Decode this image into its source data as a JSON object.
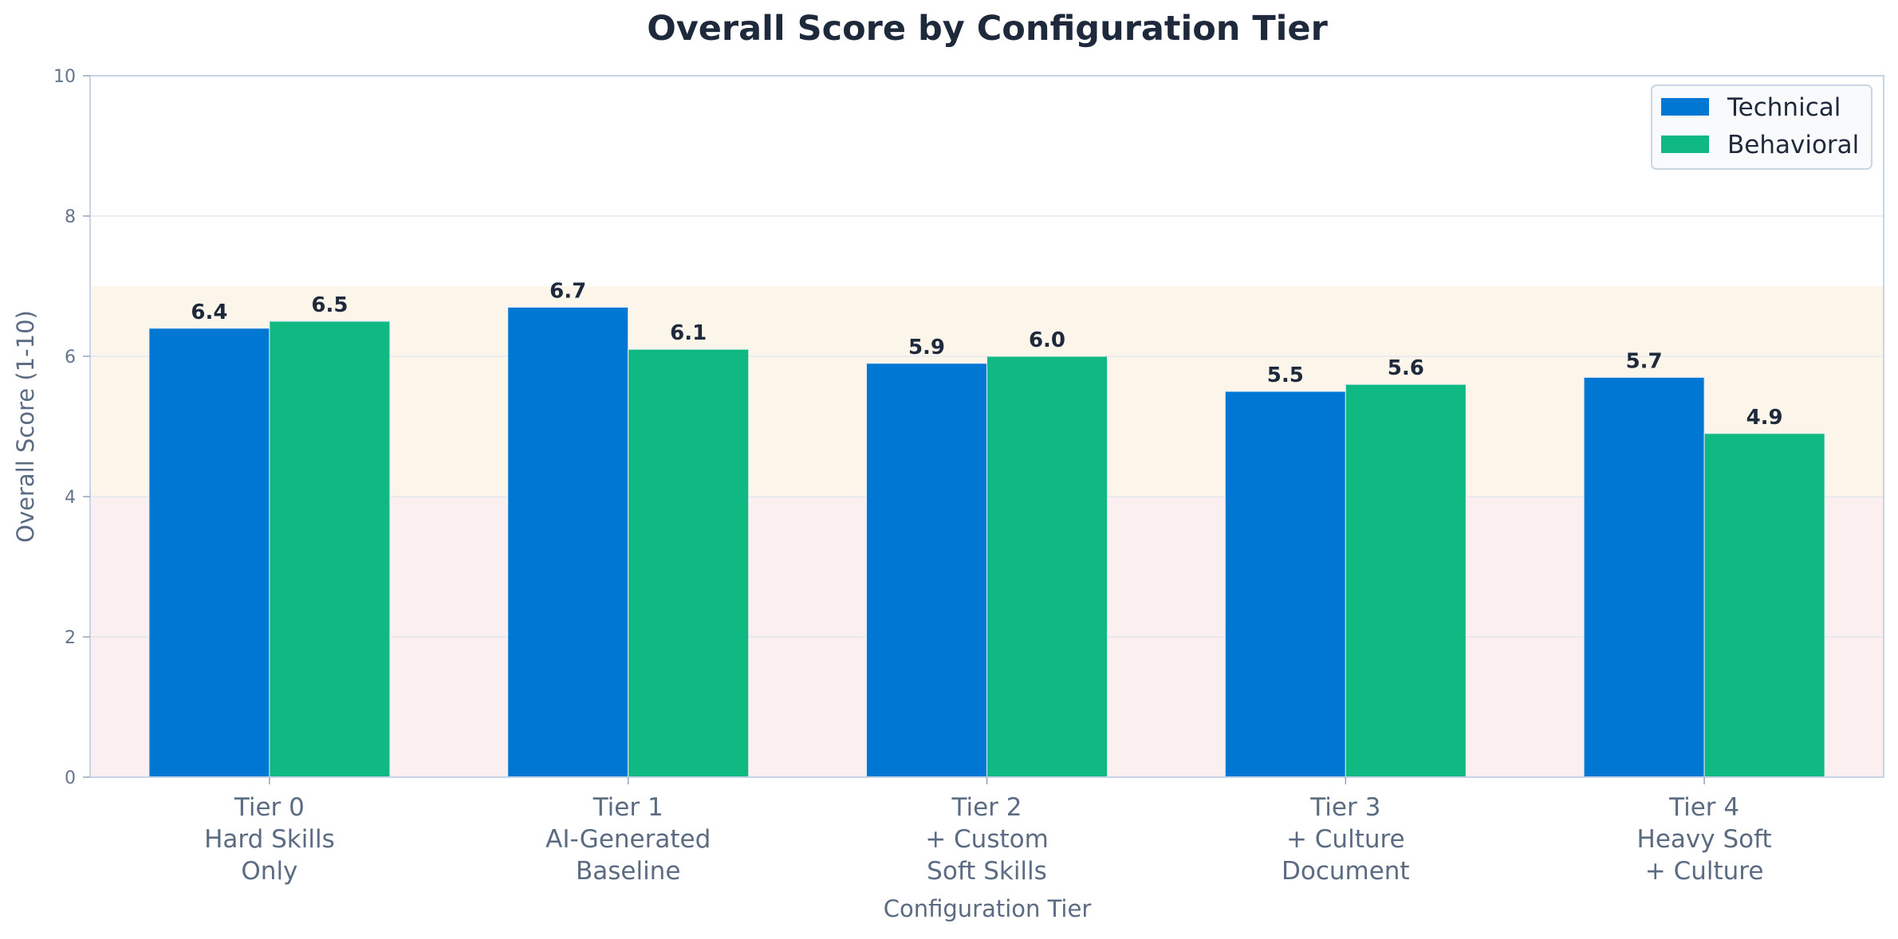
{
  "chart_data": {
    "type": "bar",
    "title": "Overall Score by Configuration Tier",
    "xlabel": "Configuration Tier",
    "ylabel": "Overall Score (1-10)",
    "ylim": [
      0,
      10
    ],
    "yticks": [
      "0",
      "2",
      "4",
      "6",
      "8",
      "10"
    ],
    "categories": [
      [
        "Tier 0",
        "Hard Skills",
        "Only"
      ],
      [
        "Tier 1",
        "AI-Generated",
        "Baseline"
      ],
      [
        "Tier 2",
        "+ Custom",
        "Soft Skills"
      ],
      [
        "Tier 3",
        "+ Culture",
        "Document"
      ],
      [
        "Tier 4",
        "Heavy Soft",
        "+ Culture"
      ]
    ],
    "series": [
      {
        "name": "Technical",
        "color": "#0177d4",
        "values": [
          6.4,
          6.7,
          5.9,
          5.5,
          5.7
        ],
        "labels": [
          "6.4",
          "6.7",
          "5.9",
          "5.5",
          "5.7"
        ]
      },
      {
        "name": "Behavioral",
        "color": "#10b981",
        "values": [
          6.5,
          6.1,
          6.0,
          5.6,
          4.9
        ],
        "labels": [
          "6.5",
          "6.1",
          "6.0",
          "5.6",
          "4.9"
        ]
      }
    ],
    "bands": [
      {
        "from": 0,
        "to": 4,
        "color": "#fbefef"
      },
      {
        "from": 4,
        "to": 7,
        "color": "#fcf5ea"
      }
    ],
    "grid": true,
    "legend_position": "top-right"
  }
}
